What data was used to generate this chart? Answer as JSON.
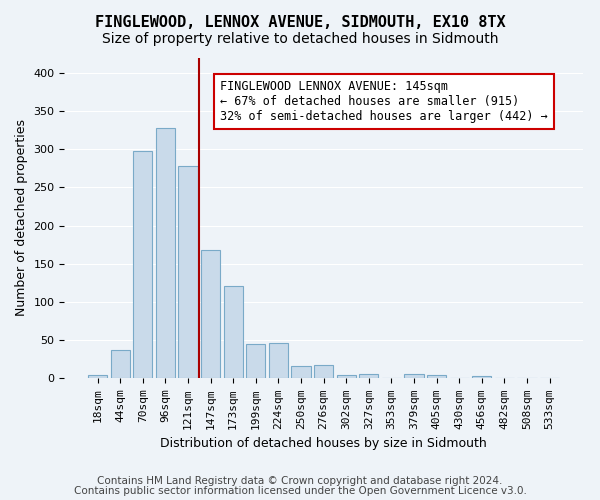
{
  "title": "FINGLEWOOD, LENNOX AVENUE, SIDMOUTH, EX10 8TX",
  "subtitle": "Size of property relative to detached houses in Sidmouth",
  "xlabel": "Distribution of detached houses by size in Sidmouth",
  "ylabel": "Number of detached properties",
  "footer1": "Contains HM Land Registry data © Crown copyright and database right 2024.",
  "footer2": "Contains public sector information licensed under the Open Government Licence v3.0.",
  "bar_labels": [
    "18sqm",
    "44sqm",
    "70sqm",
    "96sqm",
    "121sqm",
    "147sqm",
    "173sqm",
    "199sqm",
    "224sqm",
    "250sqm",
    "276sqm",
    "302sqm",
    "327sqm",
    "353sqm",
    "379sqm",
    "405sqm",
    "430sqm",
    "456sqm",
    "482sqm",
    "508sqm",
    "533sqm"
  ],
  "bar_values": [
    4,
    37,
    297,
    328,
    278,
    168,
    121,
    45,
    46,
    16,
    17,
    5,
    6,
    0,
    6,
    4,
    0,
    3,
    0,
    1,
    0
  ],
  "bar_color": "#c9daea",
  "bar_edgecolor": "#7aaac8",
  "vline_color": "#aa0000",
  "annotation_title": "FINGLEWOOD LENNOX AVENUE: 145sqm",
  "annotation_line1": "← 67% of detached houses are smaller (915)",
  "annotation_line2": "32% of semi-detached houses are larger (442) →",
  "annotation_box_color": "#ffffff",
  "annotation_box_edgecolor": "#cc0000",
  "ylim": [
    0,
    420
  ],
  "yticks": [
    0,
    50,
    100,
    150,
    200,
    250,
    300,
    350,
    400
  ],
  "background_color": "#eef3f8",
  "plot_background": "#eef3f8",
  "grid_color": "#ffffff",
  "title_fontsize": 11,
  "subtitle_fontsize": 10,
  "axis_label_fontsize": 9,
  "tick_fontsize": 8,
  "footer_fontsize": 7.5,
  "annotation_fontsize": 8.5
}
